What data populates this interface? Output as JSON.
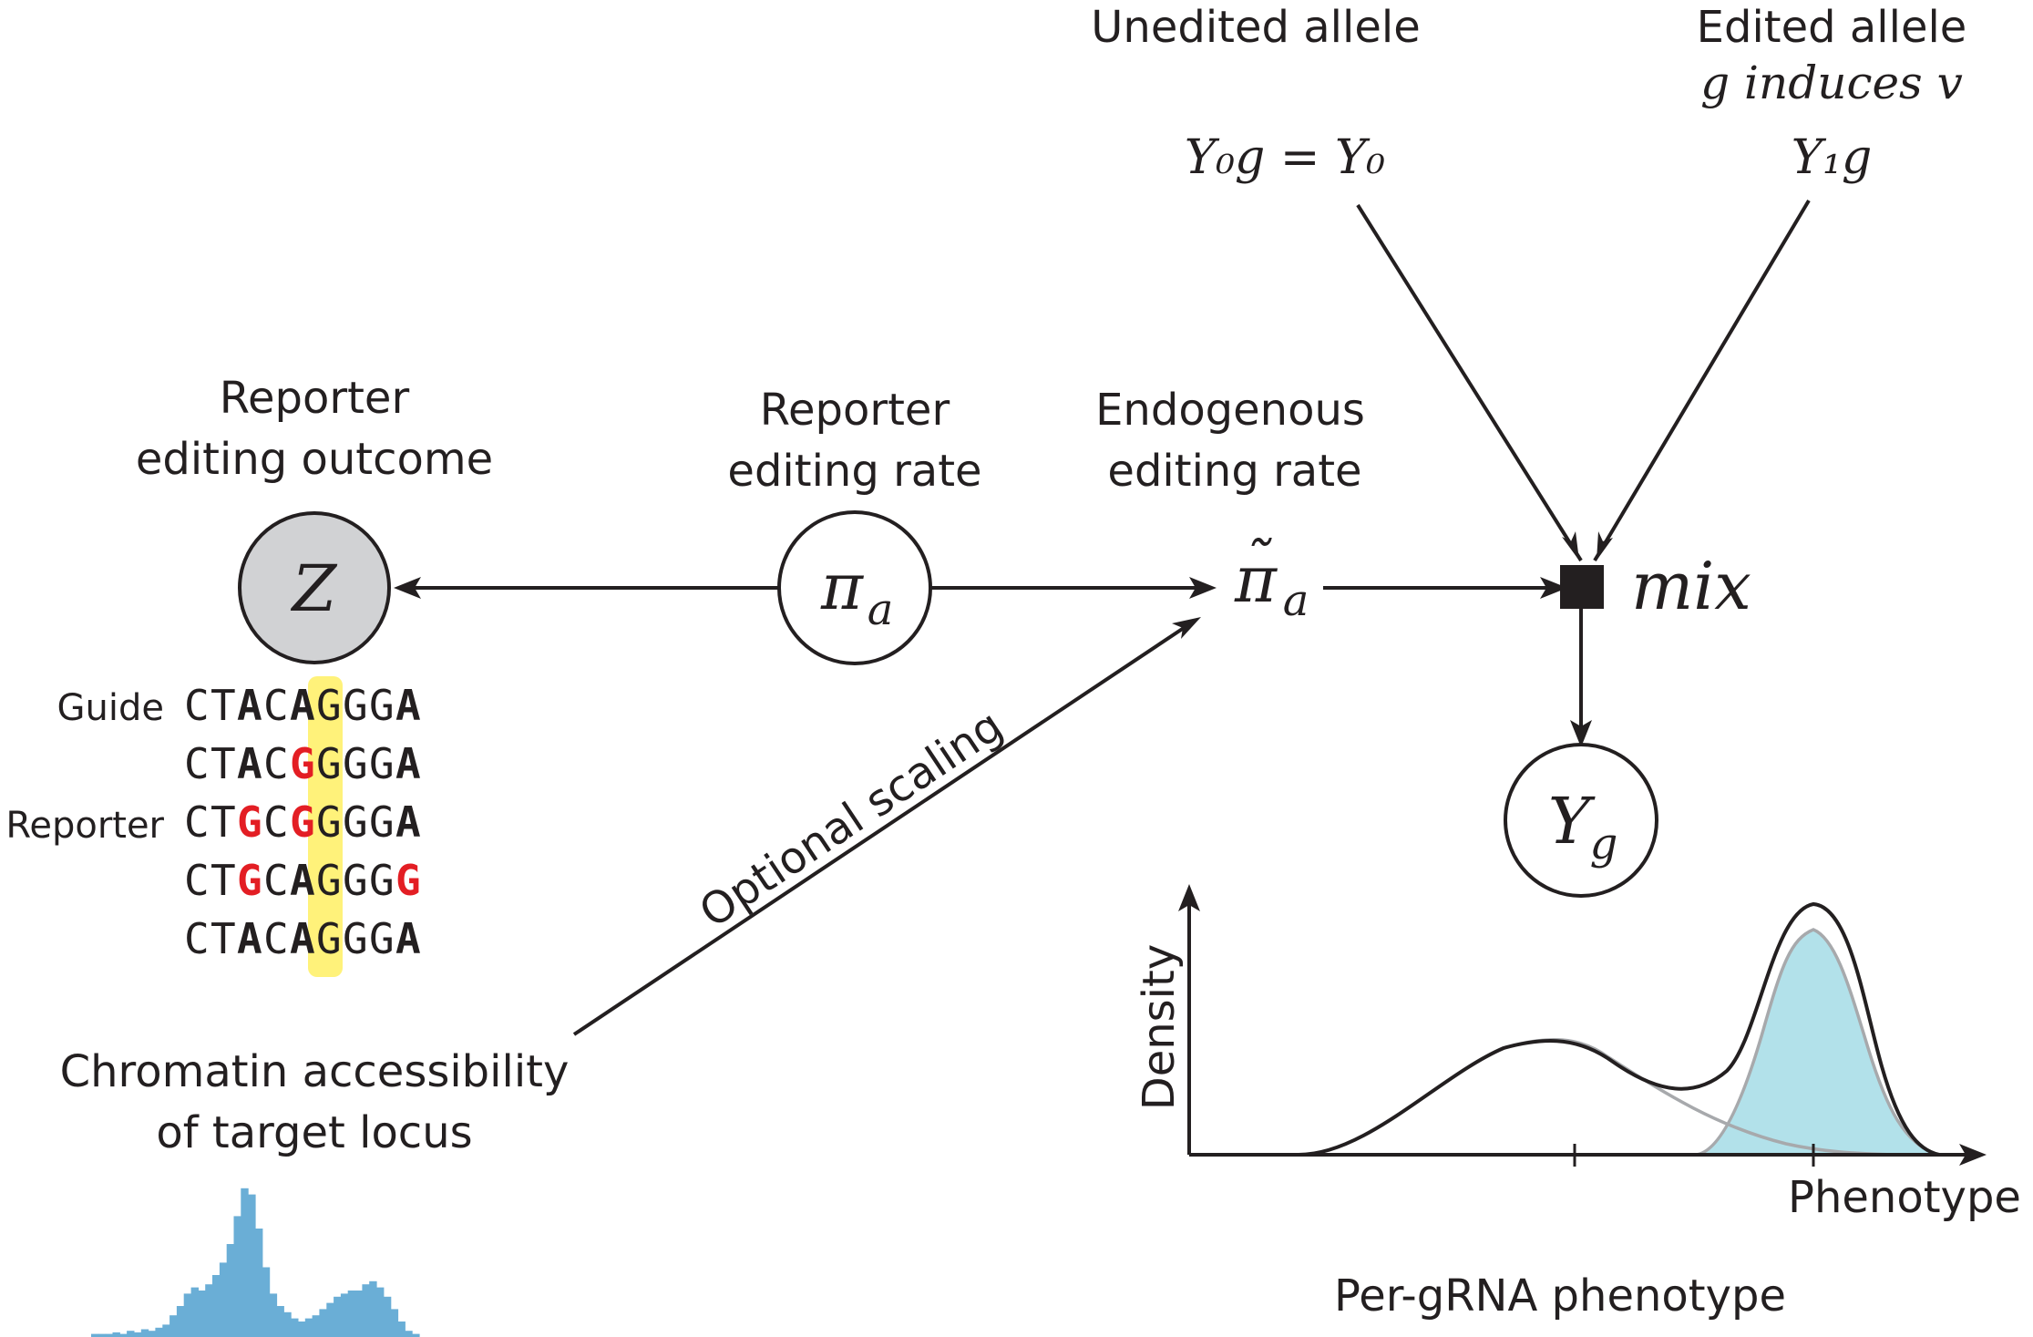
{
  "nodes": {
    "unedited": {
      "label": "Unedited allele",
      "formula": "Y₀g = Y₀"
    },
    "edited": {
      "label_1": "Edited allele",
      "label_2": "g induces v",
      "formula": "Y₁g"
    },
    "reporter_outcome": {
      "label_1": "Reporter",
      "label_2": "editing outcome",
      "symbol": "Z"
    },
    "reporter_rate": {
      "label_1": "Reporter",
      "label_2": "editing rate",
      "symbol": "π",
      "subscript": "a"
    },
    "endogenous_rate": {
      "label_1": "Endogenous",
      "label_2": "editing rate",
      "symbol": "π",
      "tilde": "˜",
      "subscript": "a"
    },
    "mix": {
      "label": "mix"
    },
    "phenotype_node": {
      "symbol": "Y",
      "subscript": "g"
    },
    "chromatin": {
      "label_1": "Chromatin accessibility",
      "label_2": "of target locus"
    }
  },
  "edge_labels": {
    "optional_scaling": "Optional scaling"
  },
  "sequences": {
    "guide_label": "Guide",
    "reporter_label": "Reporter",
    "rows": [
      [
        {
          "c": "C",
          "s": "n"
        },
        {
          "c": "T",
          "s": "n"
        },
        {
          "c": "A",
          "s": "b"
        },
        {
          "c": "C",
          "s": "n"
        },
        {
          "c": "A",
          "s": "b"
        },
        {
          "c": "G",
          "s": "n"
        },
        {
          "c": "G",
          "s": "n"
        },
        {
          "c": "G",
          "s": "n"
        },
        {
          "c": "A",
          "s": "b"
        }
      ],
      [
        {
          "c": "C",
          "s": "n"
        },
        {
          "c": "T",
          "s": "n"
        },
        {
          "c": "A",
          "s": "b"
        },
        {
          "c": "C",
          "s": "n"
        },
        {
          "c": "G",
          "s": "r"
        },
        {
          "c": "G",
          "s": "n"
        },
        {
          "c": "G",
          "s": "n"
        },
        {
          "c": "G",
          "s": "n"
        },
        {
          "c": "A",
          "s": "b"
        }
      ],
      [
        {
          "c": "C",
          "s": "n"
        },
        {
          "c": "T",
          "s": "n"
        },
        {
          "c": "G",
          "s": "r"
        },
        {
          "c": "C",
          "s": "n"
        },
        {
          "c": "G",
          "s": "r"
        },
        {
          "c": "G",
          "s": "n"
        },
        {
          "c": "G",
          "s": "n"
        },
        {
          "c": "G",
          "s": "n"
        },
        {
          "c": "A",
          "s": "b"
        }
      ],
      [
        {
          "c": "C",
          "s": "n"
        },
        {
          "c": "T",
          "s": "n"
        },
        {
          "c": "G",
          "s": "r"
        },
        {
          "c": "C",
          "s": "n"
        },
        {
          "c": "A",
          "s": "b"
        },
        {
          "c": "G",
          "s": "n"
        },
        {
          "c": "G",
          "s": "n"
        },
        {
          "c": "G",
          "s": "n"
        },
        {
          "c": "G",
          "s": "r"
        }
      ],
      [
        {
          "c": "C",
          "s": "n"
        },
        {
          "c": "T",
          "s": "n"
        },
        {
          "c": "A",
          "s": "b"
        },
        {
          "c": "C",
          "s": "n"
        },
        {
          "c": "A",
          "s": "b"
        },
        {
          "c": "G",
          "s": "n"
        },
        {
          "c": "G",
          "s": "n"
        },
        {
          "c": "G",
          "s": "n"
        },
        {
          "c": "A",
          "s": "b"
        }
      ]
    ]
  },
  "density_plot": {
    "ylabel": "Density",
    "xlabel": "Phenotype",
    "title": "Per-gRNA phenotype"
  },
  "chromatin_track": {
    "values": [
      0.02,
      0.02,
      0.02,
      0.03,
      0.02,
      0.04,
      0.03,
      0.05,
      0.04,
      0.06,
      0.08,
      0.14,
      0.2,
      0.28,
      0.32,
      0.3,
      0.34,
      0.4,
      0.48,
      0.6,
      0.78,
      0.96,
      0.92,
      0.7,
      0.45,
      0.28,
      0.2,
      0.16,
      0.12,
      0.1,
      0.12,
      0.14,
      0.18,
      0.22,
      0.26,
      0.28,
      0.3,
      0.3,
      0.34,
      0.36,
      0.32,
      0.26,
      0.18,
      0.1,
      0.04,
      0.02
    ]
  },
  "colors": {
    "ink": "#231f20",
    "red": "#e31e24",
    "highlight": "#fff27a",
    "node_gray": "#d1d2d4",
    "cyan_fill": "#b2e1ea",
    "gray_curve": "#a7a9ac",
    "track_blue": "#6aaed6"
  }
}
